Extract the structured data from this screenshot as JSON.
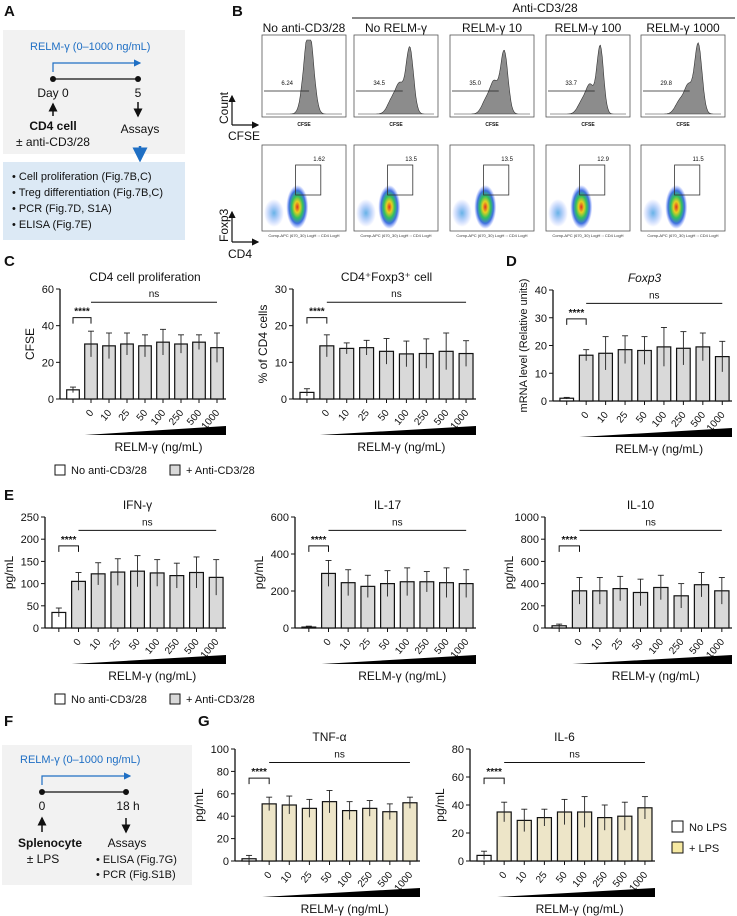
{
  "panels": {
    "A": "A",
    "B": "B",
    "C": "C",
    "D": "D",
    "E": "E",
    "F": "F",
    "G": "G"
  },
  "panel_a": {
    "treatment": "RELM-γ (0–1000 ng/mL)",
    "day0": "Day 0",
    "day5": "5",
    "cell": "CD4 cell",
    "stim": "± anti-CD3/28",
    "assays": "Assays",
    "bullets": [
      "• Cell proliferation (Fig.7B,C)",
      "• Treg differentiation (Fig.7B,C)",
      "• PCR (Fig.7D, S1A)",
      "• ELISA (Fig.7E)"
    ]
  },
  "panel_b": {
    "group_label": "Anti-CD3/28",
    "columns": [
      "No anti-CD3/28",
      "No RELM-γ",
      "RELM-γ 10",
      "RELM-γ 100",
      "RELM-γ 1000"
    ],
    "hist_gate_values": [
      "6.24",
      "34.5",
      "35.0",
      "33.7",
      "29.8"
    ],
    "dot_gate_values": [
      "1.62",
      "13.5",
      "13.5",
      "12.9",
      "11.5"
    ],
    "hist_xlabel": "CFSE",
    "dot_xlabel": "Comp-APC (670_30) LogH :: CD4 LogH",
    "axis_count": "Count",
    "axis_cfse": "CFSE",
    "axis_foxp3": "Foxp3",
    "axis_cd4": "CD4"
  },
  "legend_cd3": {
    "no": "No anti-CD3/28",
    "yes": "+ Anti-CD3/28"
  },
  "legend_lps": {
    "no": "No LPS",
    "yes": "+ LPS"
  },
  "panel_f": {
    "treatment": "RELM-γ (0–1000 ng/mL)",
    "t0": "0",
    "t1": "18 h",
    "cell": "Splenocyte",
    "stim": "± LPS",
    "assays": "Assays",
    "bullets": [
      "• ELISA (Fig.7G)",
      "• PCR (Fig.S1B)"
    ]
  },
  "colors": {
    "gray_bar": "#d9d9d9",
    "lps_bar": "#ede5c8",
    "lps_legend": "#f6e9a2",
    "blue": "#1f6fc4",
    "box_gray": "#f2f2f2",
    "box_blue": "#dce9f5"
  },
  "chart_data": [
    {
      "id": "c1",
      "type": "bar",
      "title": "CD4 cell proliferation",
      "ylabel": "CFSE",
      "xlabel": "RELM-γ (ng/mL)",
      "ylim": [
        0,
        60
      ],
      "yticks": [
        0,
        20,
        40,
        60
      ],
      "categories": [
        "",
        "0",
        "10",
        "25",
        "50",
        "100",
        "250",
        "500",
        "1000"
      ],
      "values": [
        5,
        30,
        29,
        30,
        29,
        31,
        30,
        31,
        28
      ],
      "sd": [
        1.5,
        7,
        7,
        6,
        6,
        7,
        5,
        4,
        8
      ],
      "sig": "****",
      "ns": "ns",
      "fill": "gray"
    },
    {
      "id": "c2",
      "type": "bar",
      "title": "CD4⁺Foxp3⁺ cell",
      "ylabel": "% of CD4 cells",
      "xlabel": "RELM-γ (ng/mL)",
      "ylim": [
        0,
        30
      ],
      "yticks": [
        0,
        10,
        20,
        30
      ],
      "categories": [
        "",
        "0",
        "10",
        "25",
        "50",
        "100",
        "250",
        "500",
        "1000"
      ],
      "values": [
        1.8,
        14.5,
        13.8,
        14,
        13,
        12.3,
        12.4,
        13,
        12.4
      ],
      "sd": [
        1,
        3,
        1.5,
        2,
        3.5,
        3.5,
        4,
        5,
        3.5
      ],
      "sig": "****",
      "ns": "ns",
      "fill": "gray"
    },
    {
      "id": "d",
      "type": "bar",
      "title": "Foxp3",
      "ylabel": "mRNA level (Relative units)",
      "xlabel": "RELM-γ (ng/mL)",
      "ylim": [
        0,
        40
      ],
      "yticks": [
        0,
        10,
        20,
        30,
        40
      ],
      "categories": [
        "",
        "0",
        "10",
        "25",
        "50",
        "100",
        "250",
        "500",
        "1000"
      ],
      "values": [
        1,
        16.5,
        17.2,
        18.5,
        18.2,
        19.5,
        19,
        19.5,
        16
      ],
      "sd": [
        0.3,
        2,
        6,
        5,
        5,
        7,
        6,
        5,
        5.5
      ],
      "sig": "****",
      "ns": "ns",
      "fill": "gray"
    },
    {
      "id": "e1",
      "type": "bar",
      "title": "IFN-γ",
      "ylabel": "pg/mL",
      "xlabel": "RELM-γ (ng/mL)",
      "ylim": [
        0,
        250
      ],
      "yticks": [
        0,
        50,
        100,
        150,
        200,
        250
      ],
      "categories": [
        "",
        "0",
        "10",
        "25",
        "50",
        "100",
        "250",
        "500",
        "1000"
      ],
      "values": [
        35,
        105,
        122,
        126,
        128,
        124,
        118,
        125,
        114
      ],
      "sd": [
        10,
        20,
        25,
        30,
        35,
        30,
        28,
        35,
        40
      ],
      "sig": "****",
      "ns": "ns",
      "fill": "gray"
    },
    {
      "id": "e2",
      "type": "bar",
      "title": "IL-17",
      "ylabel": "pg/mL",
      "xlabel": "RELM-γ (ng/mL)",
      "ylim": [
        0,
        600
      ],
      "yticks": [
        0,
        200,
        400,
        600
      ],
      "categories": [
        "",
        "0",
        "10",
        "25",
        "50",
        "100",
        "250",
        "500",
        "1000"
      ],
      "values": [
        5,
        295,
        245,
        225,
        240,
        250,
        250,
        245,
        240
      ],
      "sd": [
        5,
        70,
        70,
        60,
        70,
        75,
        55,
        80,
        75
      ],
      "sig": "****",
      "ns": "ns",
      "fill": "gray"
    },
    {
      "id": "e3",
      "type": "bar",
      "title": "IL-10",
      "ylabel": "pg/mL",
      "xlabel": "RELM-γ (ng/mL)",
      "ylim": [
        0,
        1000
      ],
      "yticks": [
        0,
        200,
        400,
        600,
        800,
        1000
      ],
      "categories": [
        "",
        "0",
        "10",
        "25",
        "50",
        "100",
        "250",
        "500",
        "1000"
      ],
      "values": [
        20,
        335,
        335,
        355,
        320,
        365,
        290,
        390,
        335
      ],
      "sd": [
        15,
        120,
        120,
        110,
        120,
        110,
        110,
        110,
        120
      ],
      "sig": "****",
      "ns": "ns",
      "fill": "gray"
    },
    {
      "id": "g1",
      "type": "bar",
      "title": "TNF-α",
      "ylabel": "pg/mL",
      "xlabel": "RELM-γ (ng/mL)",
      "ylim": [
        0,
        100
      ],
      "yticks": [
        0,
        20,
        40,
        60,
        80,
        100
      ],
      "categories": [
        "",
        "0",
        "10",
        "25",
        "50",
        "100",
        "250",
        "500",
        "1000"
      ],
      "values": [
        2,
        51,
        50,
        47,
        53,
        45,
        47,
        44,
        52
      ],
      "sd": [
        3,
        6,
        8,
        8,
        10,
        8,
        7,
        7,
        5
      ],
      "sig": "****",
      "ns": "ns",
      "fill": "lps"
    },
    {
      "id": "g2",
      "type": "bar",
      "title": "IL-6",
      "ylabel": "pg/mL",
      "xlabel": "RELM-γ (ng/mL)",
      "ylim": [
        0,
        80
      ],
      "yticks": [
        0,
        20,
        40,
        60,
        80
      ],
      "categories": [
        "",
        "0",
        "10",
        "25",
        "50",
        "100",
        "250",
        "500",
        "1000"
      ],
      "values": [
        4,
        35,
        29,
        31,
        35,
        35,
        31,
        32,
        38
      ],
      "sd": [
        3,
        7,
        8,
        6,
        9,
        11,
        9,
        10,
        8
      ],
      "sig": "****",
      "ns": "ns",
      "fill": "lps"
    }
  ]
}
